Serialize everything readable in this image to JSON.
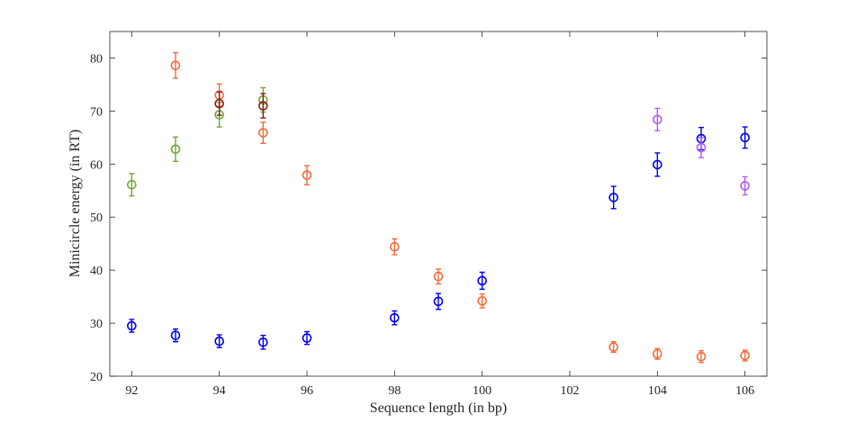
{
  "chart_data": {
    "type": "scatter",
    "title": "",
    "xlabel": "Sequence length (in bp)",
    "ylabel": "Minicircle energy (in RT)",
    "xlim": [
      91.5,
      106.5
    ],
    "ylim": [
      20,
      85
    ],
    "xticks": [
      92,
      94,
      96,
      98,
      100,
      102,
      104,
      106
    ],
    "yticks": [
      20,
      30,
      40,
      50,
      60,
      70,
      80
    ],
    "xtick_labels": [
      "92",
      "94",
      "96",
      "98",
      "100",
      "102",
      "104",
      "106"
    ],
    "ytick_labels": [
      "20",
      "30",
      "40",
      "50",
      "60",
      "70",
      "80"
    ],
    "grid": false,
    "series": [
      {
        "name": "blue",
        "color": "#0000ee",
        "points": [
          {
            "x": 92,
            "y": 29.5,
            "err": 1.2
          },
          {
            "x": 93,
            "y": 27.7,
            "err": 1.2
          },
          {
            "x": 94,
            "y": 26.6,
            "err": 1.2
          },
          {
            "x": 95,
            "y": 26.4,
            "err": 1.3
          },
          {
            "x": 96,
            "y": 27.2,
            "err": 1.2
          },
          {
            "x": 98,
            "y": 31.0,
            "err": 1.3
          },
          {
            "x": 99,
            "y": 34.1,
            "err": 1.5
          },
          {
            "x": 100,
            "y": 38.0,
            "err": 1.6
          },
          {
            "x": 103,
            "y": 53.7,
            "err": 2.1
          },
          {
            "x": 104,
            "y": 59.9,
            "err": 2.2
          },
          {
            "x": 105,
            "y": 64.8,
            "err": 2.1
          },
          {
            "x": 106,
            "y": 65.0,
            "err": 2.0
          }
        ]
      },
      {
        "name": "orange",
        "color": "#f26b3a",
        "points": [
          {
            "x": 93,
            "y": 78.6,
            "err": 2.4
          },
          {
            "x": 94,
            "y": 73.0,
            "err": 2.1
          },
          {
            "x": 95,
            "y": 65.9,
            "err": 2.0
          },
          {
            "x": 96,
            "y": 57.9,
            "err": 1.8
          },
          {
            "x": 98,
            "y": 44.4,
            "err": 1.5
          },
          {
            "x": 99,
            "y": 38.8,
            "err": 1.4
          },
          {
            "x": 100,
            "y": 34.2,
            "err": 1.3
          },
          {
            "x": 103,
            "y": 25.5,
            "err": 1.0
          },
          {
            "x": 104,
            "y": 24.2,
            "err": 1.0
          },
          {
            "x": 105,
            "y": 23.7,
            "err": 1.1
          },
          {
            "x": 106,
            "y": 23.9,
            "err": 1.0
          }
        ]
      },
      {
        "name": "green",
        "color": "#6fa832",
        "points": [
          {
            "x": 92,
            "y": 56.1,
            "err": 2.1
          },
          {
            "x": 93,
            "y": 62.8,
            "err": 2.3
          },
          {
            "x": 94,
            "y": 69.3,
            "err": 2.3
          },
          {
            "x": 95,
            "y": 72.1,
            "err": 2.3
          }
        ]
      },
      {
        "name": "dark-red",
        "color": "#8b1a1a",
        "points": [
          {
            "x": 94,
            "y": 71.4,
            "err": 2.2
          },
          {
            "x": 95,
            "y": 71.0,
            "err": 2.3
          }
        ]
      },
      {
        "name": "purple",
        "color": "#b05cf0",
        "points": [
          {
            "x": 104,
            "y": 68.4,
            "err": 2.1
          },
          {
            "x": 105,
            "y": 63.1,
            "err": 1.9
          },
          {
            "x": 106,
            "y": 55.9,
            "err": 1.7
          }
        ]
      }
    ]
  }
}
